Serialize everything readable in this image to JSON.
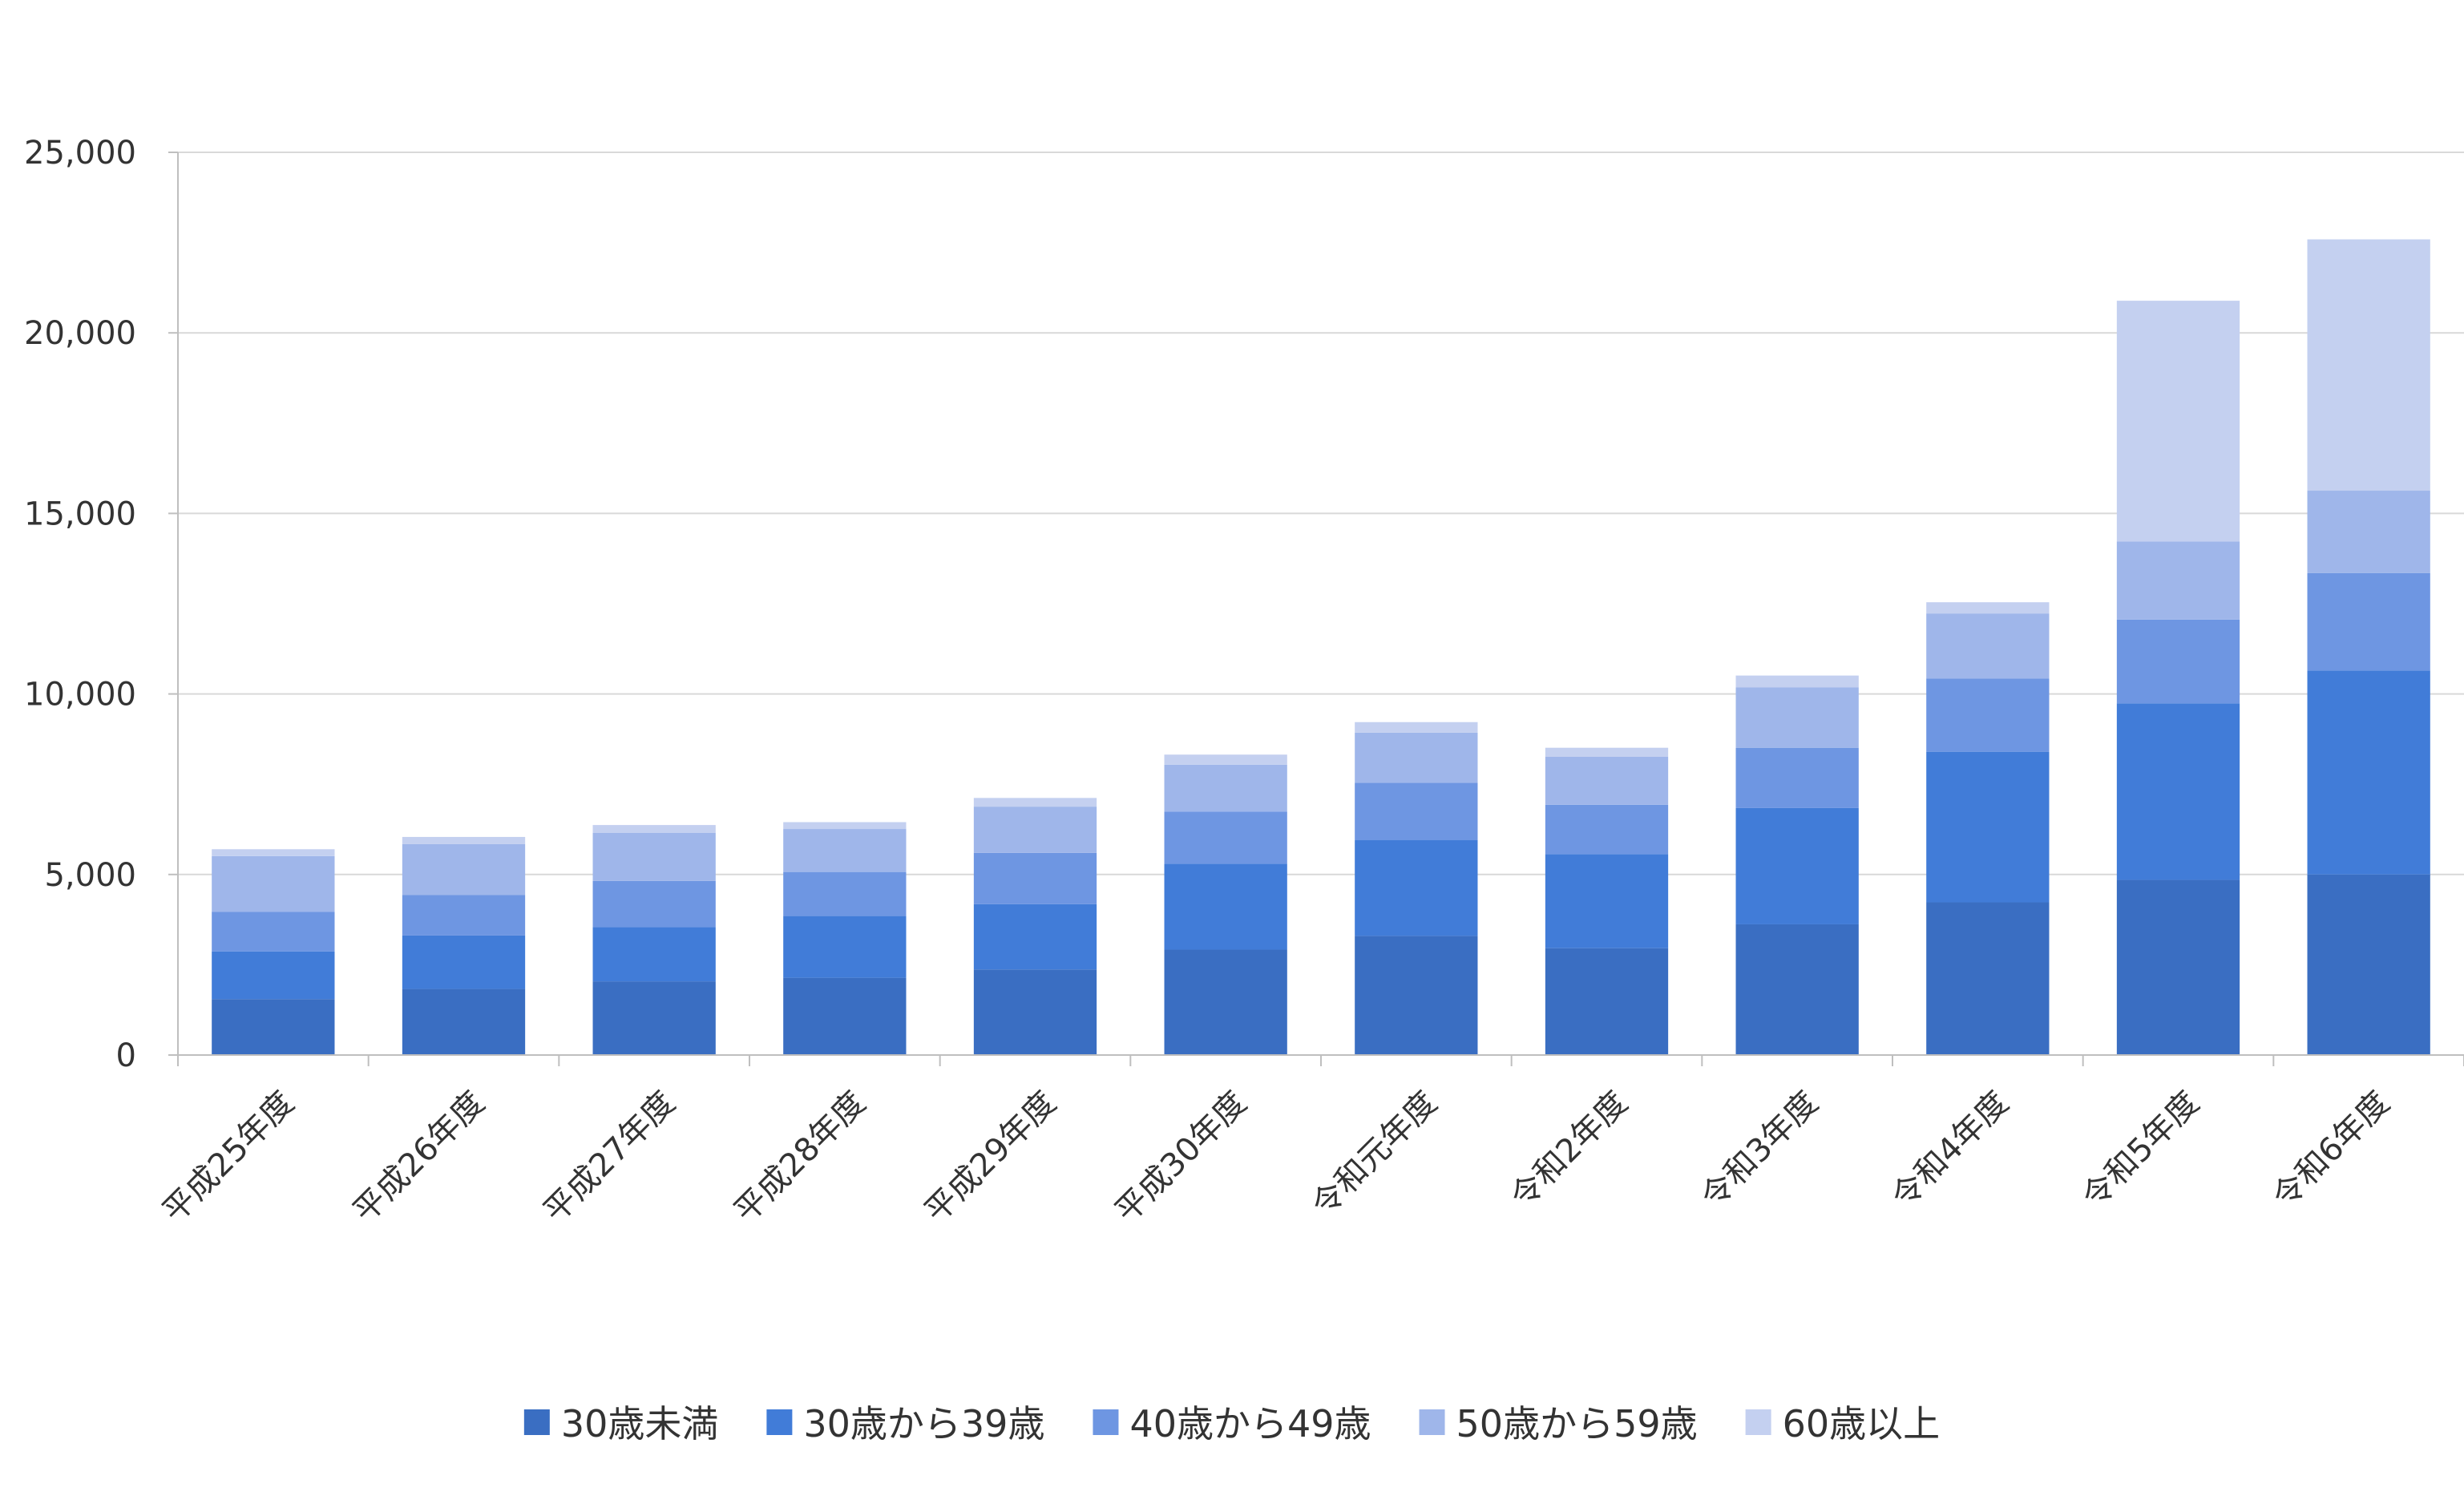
{
  "chart_data": {
    "type": "bar",
    "stacked": true,
    "title": "",
    "xlabel": "",
    "ylabel": "",
    "ylim": [
      0,
      25000
    ],
    "yticks": [
      0,
      5000,
      10000,
      15000,
      20000,
      25000
    ],
    "ytick_labels": [
      "0",
      "5,000",
      "10,000",
      "15,000",
      "20,000",
      "25,000"
    ],
    "grid": true,
    "legend_position": "bottom",
    "categories": [
      "平成25年度",
      "平成26年度",
      "平成27年度",
      "平成28年度",
      "平成29年度",
      "平成30年度",
      "令和元年度",
      "令和2年度",
      "令和3年度",
      "令和4年度",
      "令和5年度",
      "令和6年度"
    ],
    "series": [
      {
        "name": "30歳未満",
        "color": "#3a6ec2",
        "values": [
          1550,
          1830,
          2040,
          2140,
          2370,
          2920,
          3300,
          2960,
          3620,
          4230,
          4850,
          5000
        ]
      },
      {
        "name": "30歳から39歳",
        "color": "#417cd8",
        "values": [
          1320,
          1480,
          1500,
          1710,
          1810,
          2380,
          2650,
          2600,
          3220,
          4170,
          4890,
          5650
        ]
      },
      {
        "name": "40歳から49歳",
        "color": "#6e96e2",
        "values": [
          1100,
          1120,
          1280,
          1220,
          1420,
          1440,
          1590,
          1370,
          1670,
          2030,
          2320,
          2700
        ]
      },
      {
        "name": "50歳から59歳",
        "color": "#9fb6ea",
        "values": [
          1540,
          1410,
          1330,
          1190,
          1280,
          1300,
          1390,
          1330,
          1670,
          1800,
          2160,
          2280
        ]
      },
      {
        "name": "60歳以上",
        "color": "#c4d0f0",
        "values": [
          190,
          200,
          220,
          190,
          240,
          280,
          290,
          250,
          330,
          310,
          6670,
          6960
        ]
      }
    ]
  },
  "colors": {
    "grid": "#d9d9d9",
    "axis": "#bfbfbf",
    "text": "#333333"
  }
}
